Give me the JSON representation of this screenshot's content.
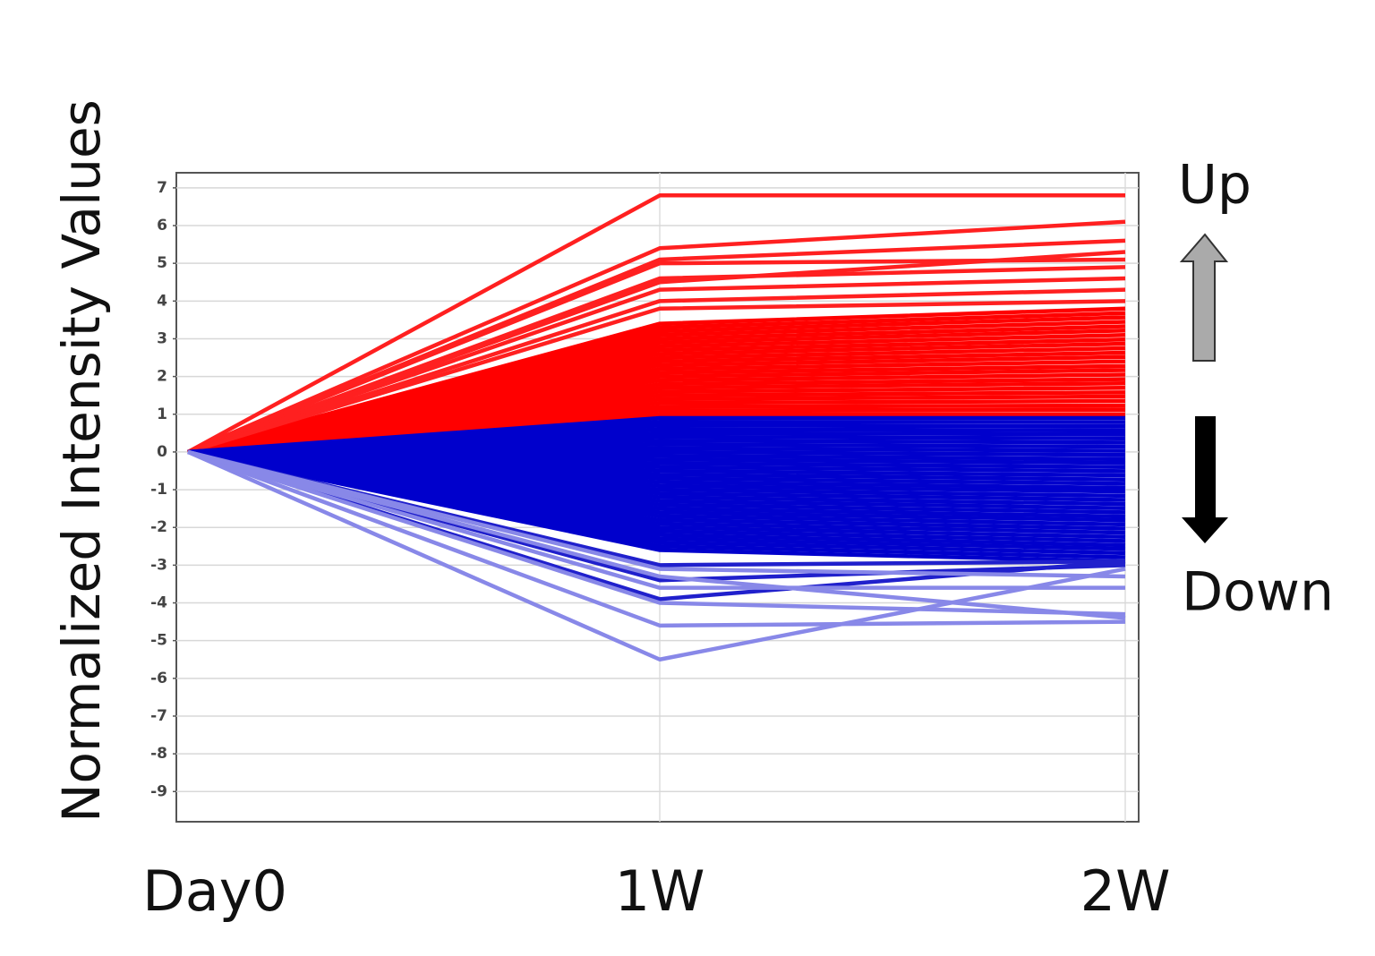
{
  "chart_data": {
    "type": "line",
    "y_label": "Normalized Intensity Values",
    "annotations": [
      "Up",
      "Down"
    ],
    "categories": [
      "Day0",
      "1W",
      "2W"
    ],
    "ylim": [
      -9.8,
      7.4
    ],
    "yticks": [
      7,
      6,
      5,
      4,
      3,
      2,
      1,
      0,
      -1,
      -2,
      -3,
      -4,
      -5,
      -6,
      -7,
      -8,
      -9
    ],
    "grid": true,
    "series": [
      {
        "color": "#ff0000",
        "values": [
          0,
          1.0,
          1.0
        ]
      },
      {
        "color": "#ff0000",
        "values": [
          0,
          1.1,
          1.12
        ]
      },
      {
        "color": "#ff0000",
        "values": [
          0,
          1.2,
          1.23
        ]
      },
      {
        "color": "#ff0000",
        "values": [
          0,
          1.3,
          1.35
        ]
      },
      {
        "color": "#ff0000",
        "values": [
          0,
          1.4,
          1.47
        ]
      },
      {
        "color": "#ff0000",
        "values": [
          0,
          1.5,
          1.58
        ]
      },
      {
        "color": "#ff0000",
        "values": [
          0,
          1.6,
          1.7
        ]
      },
      {
        "color": "#ff0000",
        "values": [
          0,
          1.7,
          1.82
        ]
      },
      {
        "color": "#ff0000",
        "values": [
          0,
          1.8,
          1.93
        ]
      },
      {
        "color": "#ff0000",
        "values": [
          0,
          1.9,
          2.05
        ]
      },
      {
        "color": "#ff0000",
        "values": [
          0,
          2.0,
          2.17
        ]
      },
      {
        "color": "#ff0000",
        "values": [
          0,
          2.1,
          2.28
        ]
      },
      {
        "color": "#ff0000",
        "values": [
          0,
          2.2,
          2.4
        ]
      },
      {
        "color": "#ff0000",
        "values": [
          0,
          2.3,
          2.52
        ]
      },
      {
        "color": "#ff0000",
        "values": [
          0,
          2.4,
          2.63
        ]
      },
      {
        "color": "#ff0000",
        "values": [
          0,
          2.5,
          2.75
        ]
      },
      {
        "color": "#ff0000",
        "values": [
          0,
          2.6,
          2.87
        ]
      },
      {
        "color": "#ff0000",
        "values": [
          0,
          2.7,
          2.98
        ]
      },
      {
        "color": "#ff0000",
        "values": [
          0,
          2.8,
          3.1
        ]
      },
      {
        "color": "#ff0000",
        "values": [
          0,
          2.9,
          3.22
        ]
      },
      {
        "color": "#ff0000",
        "values": [
          0,
          3.0,
          3.33
        ]
      },
      {
        "color": "#ff0000",
        "values": [
          0,
          3.1,
          3.45
        ]
      },
      {
        "color": "#ff0000",
        "values": [
          0,
          3.2,
          3.57
        ]
      },
      {
        "color": "#ff0000",
        "values": [
          0,
          3.3,
          3.68
        ]
      },
      {
        "color": "#ff0000",
        "values": [
          0,
          3.4,
          3.8
        ]
      },
      {
        "color": "#ff2020",
        "values": [
          0,
          6.8,
          6.8
        ]
      },
      {
        "color": "#ff2020",
        "values": [
          0,
          5.4,
          6.1
        ]
      },
      {
        "color": "#ff2020",
        "values": [
          0,
          5.1,
          5.6
        ]
      },
      {
        "color": "#ff2020",
        "values": [
          0,
          5.0,
          5.1
        ]
      },
      {
        "color": "#ff2020",
        "values": [
          0,
          4.5,
          5.3
        ]
      },
      {
        "color": "#ff2020",
        "values": [
          0,
          4.6,
          4.9
        ]
      },
      {
        "color": "#ff2020",
        "values": [
          0,
          4.3,
          4.6
        ]
      },
      {
        "color": "#ff2020",
        "values": [
          0,
          4.0,
          4.3
        ]
      },
      {
        "color": "#ff2020",
        "values": [
          0,
          3.8,
          4.0
        ]
      },
      {
        "color": "#0000cc",
        "values": [
          0,
          0.9,
          0.9
        ]
      },
      {
        "color": "#0000cc",
        "values": [
          0,
          0.8,
          0.79
        ]
      },
      {
        "color": "#0000cc",
        "values": [
          0,
          0.7,
          0.68
        ]
      },
      {
        "color": "#0000cc",
        "values": [
          0,
          0.6,
          0.57
        ]
      },
      {
        "color": "#0000cc",
        "values": [
          0,
          0.5,
          0.47
        ]
      },
      {
        "color": "#0000cc",
        "values": [
          0,
          0.4,
          0.36
        ]
      },
      {
        "color": "#0000cc",
        "values": [
          0,
          0.3,
          0.25
        ]
      },
      {
        "color": "#0000cc",
        "values": [
          0,
          0.2,
          0.14
        ]
      },
      {
        "color": "#0000cc",
        "values": [
          0,
          0.1,
          0.03
        ]
      },
      {
        "color": "#0000cc",
        "values": [
          0,
          0,
          -0.08
        ]
      },
      {
        "color": "#0000cc",
        "values": [
          0,
          -0.1,
          -0.19
        ]
      },
      {
        "color": "#0000cc",
        "values": [
          0,
          -0.2,
          -0.29
        ]
      },
      {
        "color": "#0000cc",
        "values": [
          0,
          -0.3,
          -0.4
        ]
      },
      {
        "color": "#0000cc",
        "values": [
          0,
          -0.4,
          -0.51
        ]
      },
      {
        "color": "#0000cc",
        "values": [
          0,
          -0.5,
          -0.62
        ]
      },
      {
        "color": "#0000cc",
        "values": [
          0,
          -0.6,
          -0.73
        ]
      },
      {
        "color": "#0000cc",
        "values": [
          0,
          -0.7,
          -0.84
        ]
      },
      {
        "color": "#0000cc",
        "values": [
          0,
          -0.8,
          -0.95
        ]
      },
      {
        "color": "#0000cc",
        "values": [
          0,
          -0.9,
          -1.05
        ]
      },
      {
        "color": "#0000cc",
        "values": [
          0,
          -1.0,
          -1.16
        ]
      },
      {
        "color": "#0000cc",
        "values": [
          0,
          -1.1,
          -1.27
        ]
      },
      {
        "color": "#0000cc",
        "values": [
          0,
          -1.2,
          -1.38
        ]
      },
      {
        "color": "#0000cc",
        "values": [
          0,
          -1.3,
          -1.49
        ]
      },
      {
        "color": "#0000cc",
        "values": [
          0,
          -1.4,
          -1.6
        ]
      },
      {
        "color": "#0000cc",
        "values": [
          0,
          -1.5,
          -1.71
        ]
      },
      {
        "color": "#0000cc",
        "values": [
          0,
          -1.6,
          -1.81
        ]
      },
      {
        "color": "#0000cc",
        "values": [
          0,
          -1.7,
          -1.92
        ]
      },
      {
        "color": "#0000cc",
        "values": [
          0,
          -1.8,
          -2.03
        ]
      },
      {
        "color": "#0000cc",
        "values": [
          0,
          -1.9,
          -2.14
        ]
      },
      {
        "color": "#0000cc",
        "values": [
          0,
          -2.0,
          -2.25
        ]
      },
      {
        "color": "#0000cc",
        "values": [
          0,
          -2.1,
          -2.36
        ]
      },
      {
        "color": "#0000cc",
        "values": [
          0,
          -2.2,
          -2.47
        ]
      },
      {
        "color": "#0000cc",
        "values": [
          0,
          -2.3,
          -2.57
        ]
      },
      {
        "color": "#0000cc",
        "values": [
          0,
          -2.4,
          -2.68
        ]
      },
      {
        "color": "#0000cc",
        "values": [
          0,
          -2.5,
          -2.79
        ]
      },
      {
        "color": "#0000cc",
        "values": [
          0,
          -2.6,
          -2.9
        ]
      },
      {
        "color": "#2020cc",
        "values": [
          0,
          -3.0,
          -2.9
        ]
      },
      {
        "color": "#2020cc",
        "values": [
          0,
          -3.4,
          -3.0
        ]
      },
      {
        "color": "#2020cc",
        "values": [
          0,
          -3.9,
          -2.9
        ]
      },
      {
        "color": "#8888e8",
        "values": [
          0,
          -5.5,
          -3.1
        ]
      },
      {
        "color": "#8888e8",
        "values": [
          0,
          -4.6,
          -4.5
        ]
      },
      {
        "color": "#8888e8",
        "values": [
          0,
          -4.0,
          -4.3
        ]
      },
      {
        "color": "#8888e8",
        "values": [
          0,
          -3.6,
          -3.6
        ]
      },
      {
        "color": "#8888e8",
        "values": [
          0,
          -3.3,
          -4.4
        ]
      },
      {
        "color": "#8888e8",
        "values": [
          0,
          -3.1,
          -3.3
        ]
      }
    ]
  }
}
